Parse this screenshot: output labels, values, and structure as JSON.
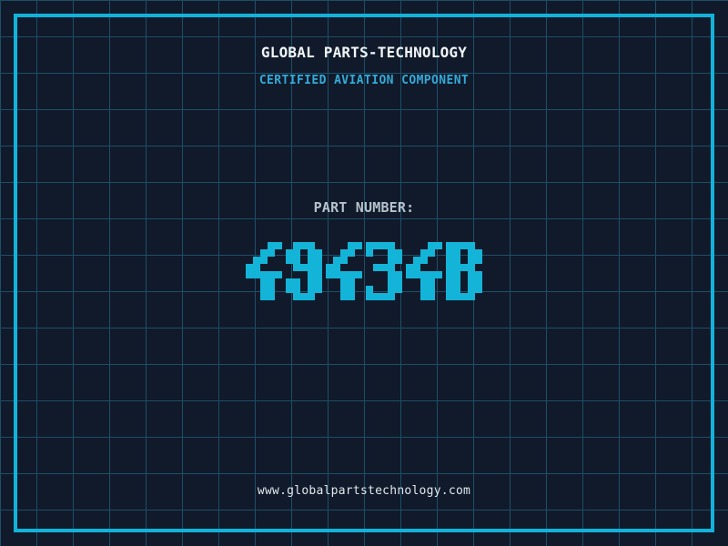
{
  "header": {
    "title": "GLOBAL PARTS-TECHNOLOGY",
    "subtitle": "CERTIFIED AVIATION COMPONENT"
  },
  "part": {
    "label": "PART NUMBER:",
    "value": "49434B"
  },
  "footer": {
    "website": "www.globalpartstechnology.com"
  },
  "colors": {
    "background": "#101a2b",
    "grid_line": "#1d4e66",
    "frame": "#12b2da",
    "title_text": "#f2f5f7",
    "subtitle_text": "#35aad8",
    "label_text": "#b6c2cb",
    "part_number_text": "#14b4d8",
    "footer_text": "#e2e8ec"
  }
}
